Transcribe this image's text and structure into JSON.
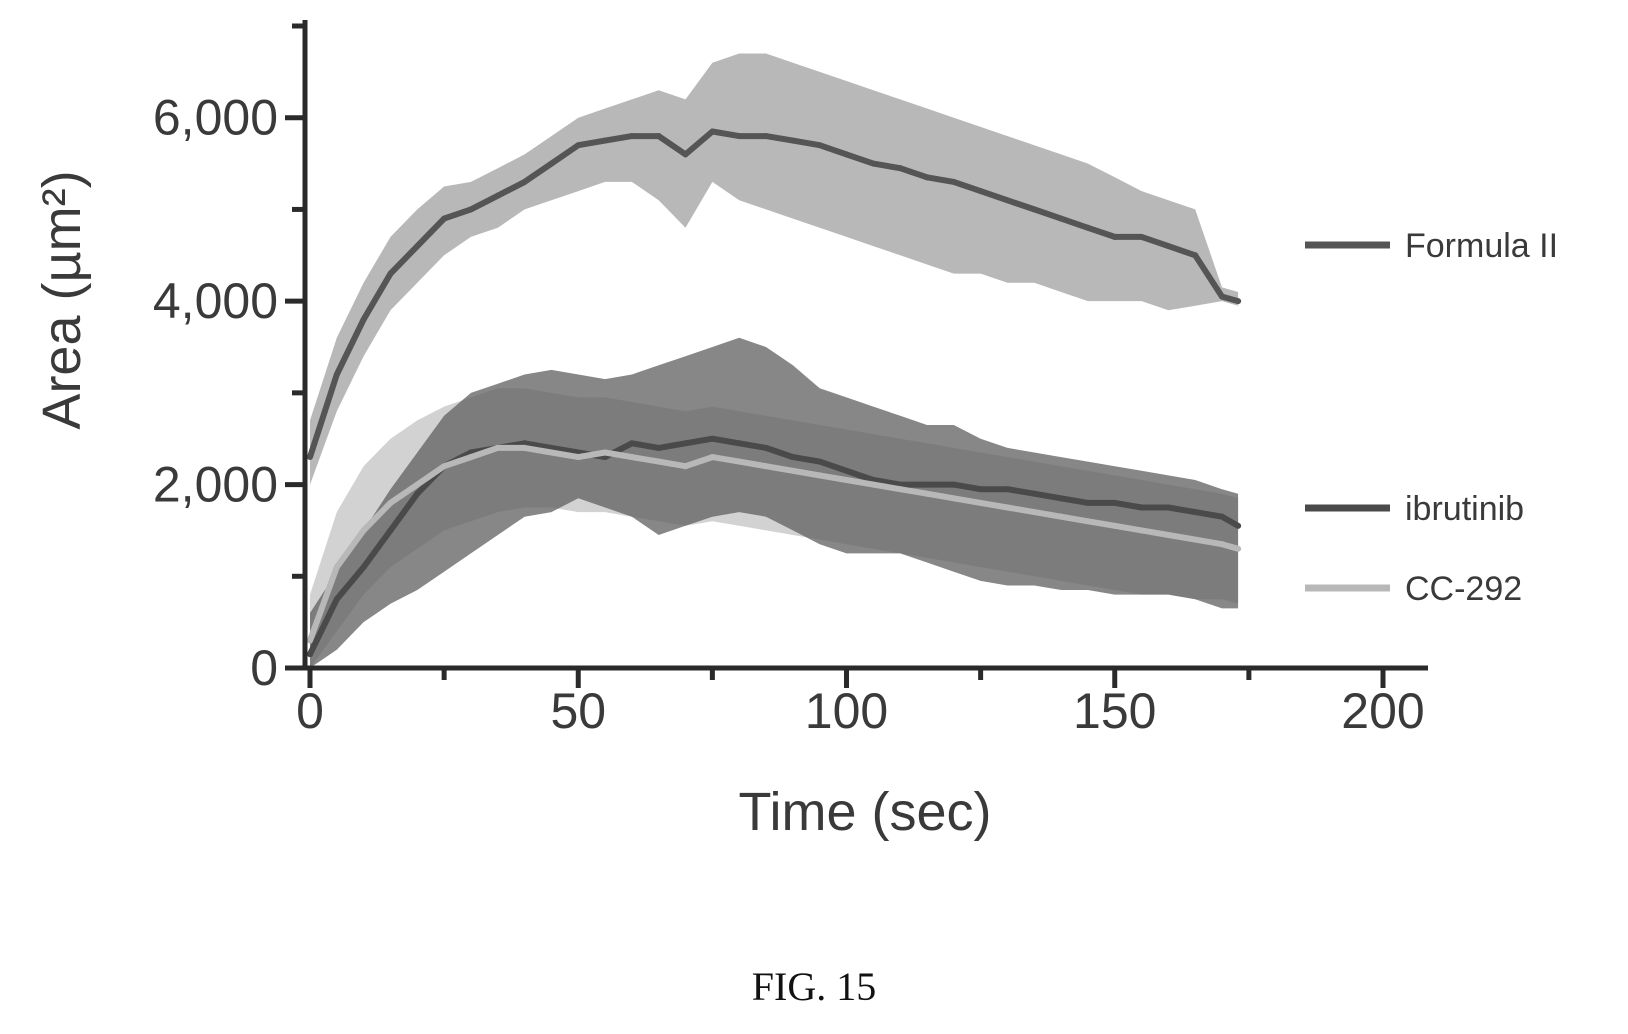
{
  "chart_data": {
    "type": "line",
    "title": "",
    "xlabel": "Time (sec)",
    "ylabel": "Area (µm²)",
    "xlim": [
      0,
      200
    ],
    "ylim": [
      0,
      7000
    ],
    "x_ticks": [
      0,
      50,
      100,
      150,
      200
    ],
    "x_tick_labels": [
      "0",
      "50",
      "100",
      "150",
      "200"
    ],
    "y_ticks": [
      0,
      2000,
      4000,
      6000
    ],
    "y_tick_labels": [
      "0",
      "2,000",
      "4,000",
      "6,000"
    ],
    "grid": false,
    "legend_placement": "right",
    "series": [
      {
        "name": "Formula II",
        "color": "#555555",
        "band_color": "#b0b0b0",
        "x": [
          0,
          5,
          10,
          15,
          20,
          25,
          30,
          35,
          40,
          45,
          50,
          55,
          60,
          65,
          70,
          75,
          80,
          85,
          90,
          95,
          100,
          105,
          110,
          115,
          120,
          125,
          130,
          135,
          140,
          145,
          150,
          155,
          160,
          165,
          170,
          173
        ],
        "mean": [
          2300,
          3200,
          3800,
          4300,
          4600,
          4900,
          5000,
          5150,
          5300,
          5500,
          5700,
          5750,
          5800,
          5800,
          5600,
          5850,
          5800,
          5800,
          5750,
          5700,
          5600,
          5500,
          5450,
          5350,
          5300,
          5200,
          5100,
          5000,
          4900,
          4800,
          4700,
          4700,
          4600,
          4500,
          4050,
          4000
        ],
        "lower": [
          2000,
          2800,
          3400,
          3900,
          4200,
          4500,
          4700,
          4800,
          5000,
          5100,
          5200,
          5300,
          5300,
          5100,
          4800,
          5300,
          5100,
          5000,
          4900,
          4800,
          4700,
          4600,
          4500,
          4400,
          4300,
          4300,
          4200,
          4200,
          4100,
          4000,
          4000,
          4000,
          3900,
          3950,
          4000,
          3950
        ],
        "upper": [
          2700,
          3600,
          4200,
          4700,
          5000,
          5250,
          5300,
          5450,
          5600,
          5800,
          6000,
          6100,
          6200,
          6300,
          6200,
          6600,
          6700,
          6700,
          6600,
          6500,
          6400,
          6300,
          6200,
          6100,
          6000,
          5900,
          5800,
          5700,
          5600,
          5500,
          5350,
          5200,
          5100,
          5000,
          4150,
          4100
        ]
      },
      {
        "name": "ibrutinib",
        "color": "#4a4a4a",
        "band_color": "#5f5f5f",
        "x": [
          0,
          5,
          10,
          15,
          20,
          25,
          30,
          35,
          40,
          45,
          50,
          55,
          60,
          65,
          70,
          75,
          80,
          85,
          90,
          95,
          100,
          105,
          110,
          115,
          120,
          125,
          130,
          135,
          140,
          145,
          150,
          155,
          160,
          165,
          170,
          173
        ],
        "mean": [
          150,
          750,
          1100,
          1500,
          1900,
          2200,
          2350,
          2400,
          2450,
          2400,
          2350,
          2300,
          2450,
          2400,
          2450,
          2500,
          2450,
          2400,
          2300,
          2250,
          2150,
          2050,
          2000,
          2000,
          2000,
          1950,
          1950,
          1900,
          1850,
          1800,
          1800,
          1750,
          1750,
          1700,
          1650,
          1550
        ],
        "lower": [
          0,
          200,
          500,
          700,
          850,
          1050,
          1250,
          1450,
          1650,
          1700,
          1850,
          1750,
          1650,
          1450,
          1550,
          1650,
          1700,
          1650,
          1500,
          1350,
          1250,
          1250,
          1250,
          1150,
          1050,
          950,
          900,
          900,
          850,
          850,
          800,
          800,
          800,
          750,
          650,
          650
        ],
        "upper": [
          600,
          1050,
          1500,
          1950,
          2350,
          2750,
          3000,
          3100,
          3200,
          3250,
          3200,
          3150,
          3200,
          3300,
          3400,
          3500,
          3600,
          3500,
          3300,
          3050,
          2950,
          2850,
          2750,
          2650,
          2650,
          2500,
          2400,
          2350,
          2300,
          2250,
          2200,
          2150,
          2100,
          2050,
          1950,
          1900
        ]
      },
      {
        "name": "CC-292",
        "color": "#b8b8b8",
        "band_color": "#cdcdcd",
        "x": [
          0,
          5,
          10,
          15,
          20,
          25,
          30,
          35,
          40,
          45,
          50,
          55,
          60,
          65,
          70,
          75,
          80,
          85,
          90,
          95,
          100,
          105,
          110,
          115,
          120,
          125,
          130,
          135,
          140,
          145,
          150,
          155,
          160,
          165,
          170,
          173
        ],
        "mean": [
          300,
          1100,
          1500,
          1800,
          2000,
          2200,
          2300,
          2400,
          2400,
          2350,
          2300,
          2350,
          2300,
          2250,
          2200,
          2300,
          2250,
          2200,
          2150,
          2100,
          2050,
          2000,
          1950,
          1900,
          1850,
          1800,
          1750,
          1700,
          1650,
          1600,
          1550,
          1500,
          1450,
          1400,
          1350,
          1300
        ],
        "lower": [
          0,
          400,
          800,
          1100,
          1300,
          1500,
          1600,
          1700,
          1750,
          1750,
          1700,
          1700,
          1650,
          1600,
          1550,
          1600,
          1550,
          1500,
          1450,
          1400,
          1350,
          1300,
          1250,
          1200,
          1150,
          1100,
          1050,
          1000,
          950,
          900,
          850,
          800,
          800,
          750,
          750,
          700
        ],
        "upper": [
          800,
          1700,
          2200,
          2500,
          2700,
          2850,
          2950,
          3050,
          3050,
          3000,
          2950,
          2950,
          2900,
          2850,
          2800,
          2850,
          2800,
          2750,
          2700,
          2650,
          2600,
          2550,
          2500,
          2450,
          2400,
          2350,
          2300,
          2250,
          2200,
          2150,
          2100,
          2050,
          2000,
          1950,
          1900,
          1850
        ]
      }
    ]
  },
  "caption": "FIG. 15"
}
